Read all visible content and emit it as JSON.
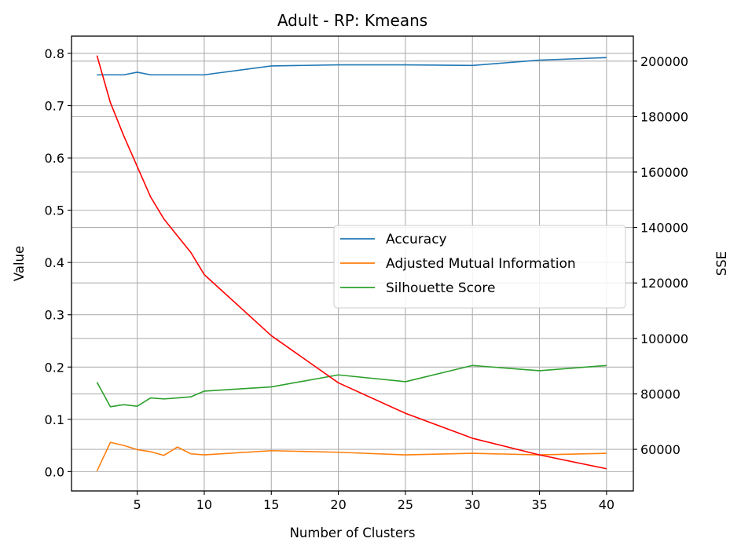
{
  "chart_data": {
    "type": "line",
    "title": "Adult - RP: Kmeans",
    "xlabel": "Number of Clusters",
    "ylabel": "Value",
    "y2label": "SSE",
    "xlim": [
      0.1,
      42.0
    ],
    "ylim": [
      -0.037,
      0.833
    ],
    "y2lim": [
      45000,
      209000
    ],
    "xticks": [
      5,
      10,
      15,
      20,
      25,
      30,
      35,
      40
    ],
    "yticks": [
      0.0,
      0.1,
      0.2,
      0.3,
      0.4,
      0.5,
      0.6,
      0.7,
      0.8
    ],
    "y2ticks": [
      60000,
      80000,
      100000,
      120000,
      140000,
      160000,
      180000,
      200000
    ],
    "grid": true,
    "legend_position": "center-right",
    "series": [
      {
        "name": "Accuracy",
        "axis": "left",
        "color": "#1f77b4",
        "x": [
          2,
          3,
          4,
          5,
          6,
          7,
          8,
          9,
          10,
          15,
          20,
          25,
          30,
          35,
          40
        ],
        "y": [
          0.759,
          0.759,
          0.759,
          0.764,
          0.759,
          0.759,
          0.759,
          0.759,
          0.759,
          0.776,
          0.778,
          0.778,
          0.777,
          0.787,
          0.792
        ]
      },
      {
        "name": "Adjusted Mutual Information",
        "axis": "left",
        "color": "#ff7f0e",
        "x": [
          2,
          3,
          4,
          5,
          6,
          7,
          8,
          9,
          10,
          15,
          20,
          25,
          30,
          35,
          40
        ],
        "y": [
          0.001,
          0.056,
          0.05,
          0.042,
          0.038,
          0.031,
          0.047,
          0.034,
          0.032,
          0.04,
          0.037,
          0.032,
          0.035,
          0.032,
          0.035
        ]
      },
      {
        "name": "Silhouette Score",
        "axis": "left",
        "color": "#2ca02c",
        "x": [
          2,
          3,
          4,
          5,
          6,
          7,
          8,
          9,
          10,
          15,
          20,
          25,
          30,
          35,
          40
        ],
        "y": [
          0.171,
          0.124,
          0.128,
          0.125,
          0.141,
          0.139,
          0.141,
          0.143,
          0.154,
          0.162,
          0.185,
          0.172,
          0.203,
          0.193,
          0.203
        ]
      },
      {
        "name": "",
        "axis": "right",
        "color": "#ff0000",
        "x": [
          2,
          3,
          4,
          5,
          6,
          7,
          8,
          9,
          10,
          15,
          20,
          25,
          30,
          35,
          40
        ],
        "y": [
          202000,
          185000,
          173000,
          162000,
          151000,
          143000,
          137000,
          131000,
          123000,
          101000,
          84000,
          73000,
          64000,
          58000,
          53000
        ]
      }
    ]
  }
}
